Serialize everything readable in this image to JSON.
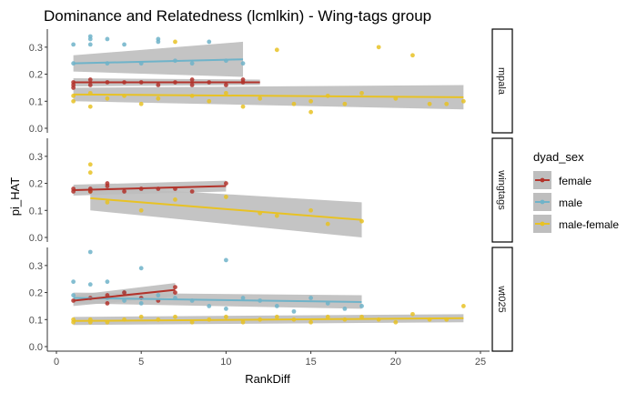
{
  "colors": {
    "female": "#b2332b",
    "male": "#6fb3c9",
    "male-female": "#e8c224",
    "ribbon": "#bebebe"
  },
  "chart_data": {
    "type": "scatter",
    "title": "Dominance and Relatedness (lcmlkin) - Wing-tags group",
    "xlabel": "RankDiff",
    "ylabel": "pi_HAT",
    "xlim": [
      0,
      25
    ],
    "ylim": [
      0,
      0.35
    ],
    "x_ticks": [
      "0",
      "5",
      "10",
      "15",
      "20",
      "25"
    ],
    "y_ticks": [
      "0.0",
      "0.1",
      "0.2",
      "0.3"
    ],
    "grid": false,
    "legend": {
      "title": "dyad_sex",
      "position": "right",
      "entries": [
        "female",
        "male",
        "male-female"
      ]
    },
    "facets": [
      {
        "label": "mpala",
        "series": [
          {
            "name": "female",
            "points": [
              [
                1,
                0.17
              ],
              [
                1,
                0.15
              ],
              [
                1,
                0.16
              ],
              [
                2,
                0.18
              ],
              [
                2,
                0.16
              ],
              [
                3,
                0.17
              ],
              [
                4,
                0.17
              ],
              [
                5,
                0.17
              ],
              [
                6,
                0.16
              ],
              [
                7,
                0.17
              ],
              [
                8,
                0.18
              ],
              [
                8,
                0.16
              ],
              [
                9,
                0.17
              ],
              [
                10,
                0.16
              ],
              [
                11,
                0.17
              ],
              [
                11,
                0.18
              ]
            ],
            "fit": [
              [
                1,
                0.17
              ],
              [
                12,
                0.17
              ]
            ],
            "ci": [
              [
                1,
                0.185,
                0.155
              ],
              [
                12,
                0.18,
                0.16
              ]
            ]
          },
          {
            "name": "male",
            "points": [
              [
                1,
                0.31
              ],
              [
                1,
                0.24
              ],
              [
                2,
                0.34
              ],
              [
                2,
                0.33
              ],
              [
                2,
                0.31
              ],
              [
                3,
                0.33
              ],
              [
                3,
                0.24
              ],
              [
                4,
                0.31
              ],
              [
                5,
                0.24
              ],
              [
                6,
                0.33
              ],
              [
                6,
                0.32
              ],
              [
                7,
                0.25
              ],
              [
                8,
                0.24
              ],
              [
                9,
                0.32
              ],
              [
                10,
                0.25
              ],
              [
                11,
                0.24
              ]
            ],
            "fit": [
              [
                1,
                0.24
              ],
              [
                11,
                0.255
              ]
            ],
            "ci": [
              [
                1,
                0.27,
                0.21
              ],
              [
                11,
                0.32,
                0.19
              ]
            ]
          },
          {
            "name": "male-female",
            "points": [
              [
                1,
                0.1
              ],
              [
                1,
                0.12
              ],
              [
                2,
                0.13
              ],
              [
                2,
                0.08
              ],
              [
                3,
                0.11
              ],
              [
                4,
                0.12
              ],
              [
                5,
                0.09
              ],
              [
                6,
                0.11
              ],
              [
                7,
                0.32
              ],
              [
                8,
                0.12
              ],
              [
                9,
                0.1
              ],
              [
                10,
                0.13
              ],
              [
                11,
                0.08
              ],
              [
                12,
                0.11
              ],
              [
                13,
                0.29
              ],
              [
                14,
                0.09
              ],
              [
                15,
                0.1
              ],
              [
                15,
                0.06
              ],
              [
                16,
                0.12
              ],
              [
                17,
                0.09
              ],
              [
                18,
                0.13
              ],
              [
                19,
                0.3
              ],
              [
                20,
                0.11
              ],
              [
                21,
                0.27
              ],
              [
                22,
                0.09
              ],
              [
                23,
                0.09
              ],
              [
                24,
                0.1
              ]
            ],
            "fit": [
              [
                1,
                0.125
              ],
              [
                24,
                0.115
              ]
            ],
            "ci": [
              [
                1,
                0.15,
                0.1
              ],
              [
                24,
                0.16,
                0.07
              ]
            ]
          }
        ]
      },
      {
        "label": "wingtags",
        "series": [
          {
            "name": "female",
            "points": [
              [
                1,
                0.17
              ],
              [
                1,
                0.18
              ],
              [
                2,
                0.18
              ],
              [
                2,
                0.17
              ],
              [
                3,
                0.2
              ],
              [
                3,
                0.19
              ],
              [
                4,
                0.17
              ],
              [
                5,
                0.18
              ],
              [
                6,
                0.18
              ],
              [
                7,
                0.18
              ],
              [
                8,
                0.17
              ],
              [
                10,
                0.2
              ]
            ],
            "fit": [
              [
                1,
                0.175
              ],
              [
                10,
                0.19
              ]
            ],
            "ci": [
              [
                1,
                0.195,
                0.155
              ],
              [
                10,
                0.21,
                0.17
              ]
            ]
          },
          {
            "name": "male-female",
            "points": [
              [
                2,
                0.27
              ],
              [
                2,
                0.24
              ],
              [
                2,
                0.17
              ],
              [
                3,
                0.13
              ],
              [
                5,
                0.1
              ],
              [
                7,
                0.14
              ],
              [
                10,
                0.15
              ],
              [
                12,
                0.09
              ],
              [
                13,
                0.08
              ],
              [
                15,
                0.1
              ],
              [
                16,
                0.05
              ],
              [
                18,
                0.06
              ]
            ],
            "fit": [
              [
                2,
                0.145
              ],
              [
                18,
                0.065
              ]
            ],
            "ci": [
              [
                2,
                0.19,
                0.1
              ],
              [
                18,
                0.13,
                0.0
              ]
            ]
          }
        ]
      },
      {
        "label": "wt025",
        "series": [
          {
            "name": "female",
            "points": [
              [
                1,
                0.17
              ],
              [
                2,
                0.18
              ],
              [
                3,
                0.16
              ],
              [
                3,
                0.19
              ],
              [
                4,
                0.2
              ],
              [
                5,
                0.18
              ],
              [
                6,
                0.17
              ],
              [
                7,
                0.22
              ],
              [
                7,
                0.2
              ]
            ],
            "fit": [
              [
                1,
                0.17
              ],
              [
                7,
                0.21
              ]
            ],
            "ci": [
              [
                1,
                0.19,
                0.15
              ],
              [
                7,
                0.235,
                0.185
              ]
            ]
          },
          {
            "name": "male",
            "points": [
              [
                1,
                0.24
              ],
              [
                1,
                0.19
              ],
              [
                2,
                0.35
              ],
              [
                2,
                0.23
              ],
              [
                3,
                0.24
              ],
              [
                3,
                0.18
              ],
              [
                4,
                0.2
              ],
              [
                4,
                0.17
              ],
              [
                5,
                0.29
              ],
              [
                5,
                0.16
              ],
              [
                6,
                0.19
              ],
              [
                7,
                0.18
              ],
              [
                8,
                0.17
              ],
              [
                9,
                0.15
              ],
              [
                10,
                0.32
              ],
              [
                10,
                0.14
              ],
              [
                11,
                0.18
              ],
              [
                12,
                0.17
              ],
              [
                13,
                0.15
              ],
              [
                14,
                0.13
              ],
              [
                15,
                0.18
              ],
              [
                16,
                0.16
              ],
              [
                17,
                0.14
              ],
              [
                18,
                0.15
              ]
            ],
            "fit": [
              [
                1,
                0.18
              ],
              [
                18,
                0.165
              ]
            ],
            "ci": [
              [
                1,
                0.2,
                0.16
              ],
              [
                18,
                0.19,
                0.14
              ]
            ]
          },
          {
            "name": "male-female",
            "points": [
              [
                1,
                0.1
              ],
              [
                1,
                0.09
              ],
              [
                2,
                0.09
              ],
              [
                2,
                0.1
              ],
              [
                3,
                0.09
              ],
              [
                4,
                0.1
              ],
              [
                5,
                0.11
              ],
              [
                6,
                0.1
              ],
              [
                7,
                0.11
              ],
              [
                8,
                0.09
              ],
              [
                9,
                0.1
              ],
              [
                10,
                0.11
              ],
              [
                11,
                0.09
              ],
              [
                12,
                0.1
              ],
              [
                13,
                0.11
              ],
              [
                14,
                0.1
              ],
              [
                15,
                0.09
              ],
              [
                16,
                0.11
              ],
              [
                17,
                0.1
              ],
              [
                18,
                0.11
              ],
              [
                19,
                0.1
              ],
              [
                20,
                0.09
              ],
              [
                21,
                0.12
              ],
              [
                22,
                0.1
              ],
              [
                23,
                0.1
              ],
              [
                24,
                0.15
              ]
            ],
            "fit": [
              [
                1,
                0.095
              ],
              [
                24,
                0.105
              ]
            ],
            "ci": [
              [
                1,
                0.11,
                0.08
              ],
              [
                24,
                0.12,
                0.09
              ]
            ]
          }
        ]
      }
    ]
  }
}
